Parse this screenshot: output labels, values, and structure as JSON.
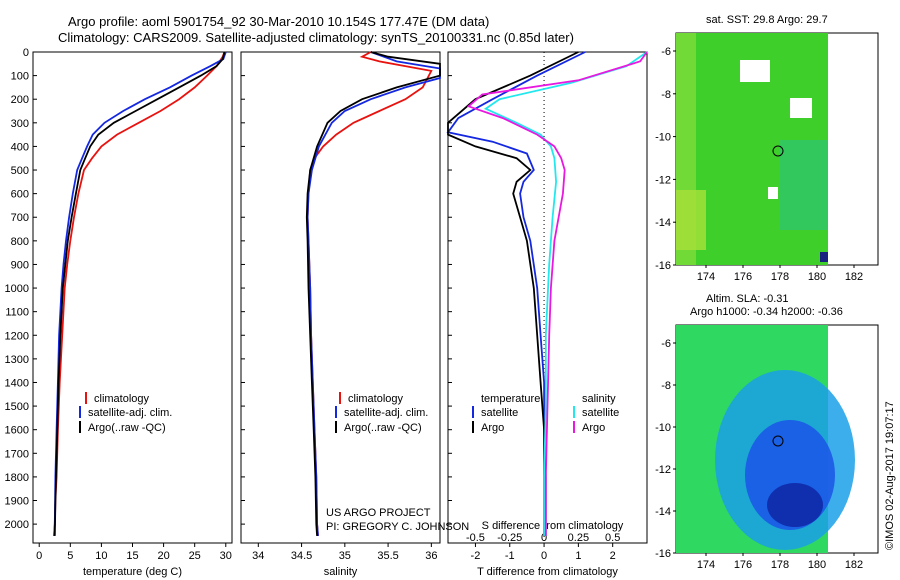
{
  "header": {
    "line1": "Argo profile: aoml 5901754_92 30-Mar-2010 10.154S 177.47E (DM data)",
    "line2": "Climatology: CARS2009. Satellite-adjusted climatology: synTS_20100331.nc (0.85d later)"
  },
  "colors": {
    "clim": "#e8120f",
    "sat": "#1428e0",
    "argo": "#000000",
    "sat_salt": "#22e8ee",
    "argo_salt": "#e818e0",
    "sst_green": "#3fcf2a",
    "sla_blue": "#1a55e8"
  },
  "chart_data": [
    {
      "type": "line",
      "id": "temperature",
      "xlabel": "temperature (deg C)",
      "xlim": [
        -1,
        31
      ],
      "xticks": [
        0,
        5,
        10,
        15,
        20,
        25,
        30
      ],
      "ylim": [
        0,
        2080
      ],
      "yticks": [
        0,
        100,
        200,
        300,
        400,
        500,
        600,
        700,
        800,
        900,
        1000,
        1100,
        1200,
        1300,
        1400,
        1500,
        1600,
        1700,
        1800,
        1900,
        2000
      ],
      "legend": [
        "climatology",
        "satellite-adj. clim.",
        "Argo(..raw -QC)"
      ],
      "series": [
        {
          "name": "climatology",
          "x": [
            29.8,
            29.5,
            28.5,
            27,
            25,
            22.5,
            19.5,
            16,
            12.5,
            10,
            8.5,
            7.2,
            6.3,
            5.6,
            5,
            4.5,
            4.1,
            3.7,
            3.3,
            3,
            2.8,
            2.6,
            2.5,
            2.4
          ],
          "y": [
            0,
            20,
            60,
            100,
            150,
            200,
            250,
            300,
            350,
            400,
            450,
            500,
            600,
            700,
            800,
            900,
            1000,
            1200,
            1400,
            1600,
            1800,
            1900,
            2000,
            2050
          ]
        },
        {
          "name": "satellite-adj. clim.",
          "x": [
            30,
            29.6,
            27.5,
            24.5,
            21,
            17,
            13.5,
            10.5,
            8.6,
            7.7,
            6.9,
            6.1,
            5.4,
            4.8,
            4.3,
            3.9,
            3.6,
            3.2,
            3,
            2.8,
            2.6,
            2.5,
            2.4
          ],
          "y": [
            0,
            30,
            60,
            100,
            150,
            200,
            250,
            300,
            350,
            400,
            450,
            500,
            600,
            700,
            800,
            900,
            1000,
            1200,
            1400,
            1600,
            1800,
            2000,
            2050
          ]
        },
        {
          "name": "Argo(..raw -QC)",
          "x": [
            29.8,
            29.5,
            28.5,
            26,
            22.5,
            19,
            15.5,
            12,
            9.5,
            8.2,
            7.4,
            6.6,
            5.9,
            5.2,
            4.6,
            4.2,
            3.8,
            3.4,
            3.1,
            2.9,
            2.7,
            2.6,
            2.5
          ],
          "y": [
            0,
            30,
            60,
            100,
            150,
            200,
            250,
            300,
            350,
            400,
            450,
            500,
            600,
            700,
            800,
            900,
            1000,
            1200,
            1400,
            1600,
            1800,
            1900,
            2050
          ]
        }
      ]
    },
    {
      "type": "line",
      "id": "salinity",
      "xlabel": "salinity",
      "xlim": [
        33.8,
        36.1
      ],
      "xticks": [
        34,
        34.5,
        35,
        35.5,
        36
      ],
      "xticklabels": [
        "34",
        "34.5",
        "35",
        "35.5",
        "36"
      ],
      "ylim": [
        0,
        2080
      ],
      "legend": [
        "climatology",
        "satellite-adj. clim.",
        "Argo(..raw -QC)"
      ],
      "series": [
        {
          "name": "climatology",
          "x": [
            35.3,
            35.2,
            35.4,
            36.0,
            35.9,
            35.7,
            35.4,
            35.1,
            34.9,
            34.75,
            34.65,
            34.6,
            34.58,
            34.57,
            34.58,
            34.6,
            34.61,
            34.63,
            34.65,
            34.67,
            34.68,
            34.69
          ],
          "y": [
            0,
            20,
            40,
            80,
            150,
            200,
            250,
            300,
            350,
            400,
            450,
            500,
            600,
            700,
            800,
            1000,
            1200,
            1400,
            1600,
            1800,
            2000,
            2050
          ]
        },
        {
          "name": "satellite-adj. clim.",
          "x": [
            35.3,
            35.6,
            36.1,
            36.1,
            35.7,
            35.3,
            35.0,
            34.85,
            34.7,
            34.62,
            34.58,
            34.57,
            34.58,
            34.6,
            34.61,
            34.63,
            34.65,
            34.67,
            34.68,
            34.69
          ],
          "y": [
            0,
            40,
            70,
            110,
            150,
            200,
            250,
            300,
            400,
            500,
            600,
            700,
            800,
            1000,
            1200,
            1400,
            1600,
            1800,
            2000,
            2050
          ]
        },
        {
          "name": "Argo(..raw -QC)",
          "x": [
            35.3,
            35.5,
            36.1,
            36.1,
            35.6,
            35.2,
            34.95,
            34.8,
            34.68,
            34.6,
            34.57,
            34.56,
            34.57,
            34.58,
            34.6,
            34.62,
            34.64,
            34.66,
            34.67,
            34.68
          ],
          "y": [
            0,
            20,
            50,
            100,
            150,
            200,
            250,
            300,
            400,
            500,
            600,
            700,
            800,
            1000,
            1200,
            1400,
            1600,
            1800,
            2000,
            2050
          ]
        }
      ]
    },
    {
      "type": "line",
      "id": "difference",
      "xlabel": "T difference from climatology",
      "xlabel_top": "S difference from climatology",
      "xlim": [
        -2.8,
        3.0
      ],
      "xticks": [
        -2,
        -1,
        0,
        1,
        2
      ],
      "top_ticks": [
        -0.5,
        -0.25,
        0,
        0.25,
        0.5
      ],
      "top_ticklabels": [
        "-0.5",
        "-0.25",
        "0",
        "0.25",
        "0.5"
      ],
      "ylim": [
        0,
        2080
      ],
      "legend_temperature": [
        "temperature",
        "satellite",
        "Argo"
      ],
      "legend_salinity": [
        "salinity",
        "satellite",
        "Argo"
      ],
      "series": [
        {
          "name": "T satellite",
          "x": [
            1.2,
            -0.2,
            -1.5,
            -2.5,
            -2.8,
            -1.5,
            -0.5,
            -0.3,
            -0.6,
            -0.7,
            -0.6,
            -0.4,
            -0.2,
            -0.1,
            0,
            0,
            0.05,
            0.05,
            0.05
          ],
          "y": [
            0,
            100,
            200,
            280,
            340,
            380,
            430,
            500,
            550,
            600,
            700,
            800,
            1000,
            1200,
            1400,
            1600,
            1800,
            2000,
            2050
          ]
        },
        {
          "name": "T Argo",
          "x": [
            1.0,
            -0.4,
            -2.0,
            -2.9,
            -2.9,
            -2.0,
            -0.8,
            -0.4,
            -0.8,
            -0.9,
            -0.7,
            -0.5,
            -0.3,
            -0.2,
            -0.1,
            0,
            0,
            0,
            0
          ],
          "y": [
            0,
            100,
            200,
            300,
            350,
            400,
            450,
            500,
            550,
            600,
            700,
            800,
            1000,
            1200,
            1400,
            1600,
            1800,
            2000,
            2050
          ]
        },
        {
          "name": "S satellite",
          "x": [
            3.0,
            2.4,
            0.8,
            -1.3,
            -1.7,
            -0.8,
            -0.1,
            0.2,
            0.3,
            0.35,
            0.25,
            0.15,
            0.05,
            0.05,
            0,
            0,
            0
          ],
          "y": [
            0,
            60,
            130,
            200,
            240,
            300,
            350,
            400,
            450,
            550,
            700,
            900,
            1200,
            1500,
            1800,
            2000,
            2050
          ]
        },
        {
          "name": "S Argo",
          "x": [
            3.0,
            2.8,
            1.0,
            -1.8,
            -2.2,
            -1.2,
            -0.2,
            0.3,
            0.5,
            0.6,
            0.55,
            0.3,
            0.2,
            0.15,
            0.1,
            0.05,
            0.05
          ],
          "y": [
            0,
            40,
            120,
            180,
            230,
            280,
            350,
            400,
            450,
            500,
            600,
            800,
            1000,
            1200,
            1500,
            1800,
            2050
          ]
        }
      ]
    }
  ],
  "credits": {
    "line1": "US ARGO PROJECT",
    "line2": "PI: GREGORY C. JOHNSON"
  },
  "sst_map": {
    "title": "sat. SST: 29.8 Argo: 29.7",
    "xticks": [
      "174",
      "176",
      "178",
      "180",
      "182"
    ],
    "yticks": [
      "-6",
      "-8",
      "-10",
      "-12",
      "-14",
      "-16"
    ]
  },
  "sla_map": {
    "title1": "Altim. SLA: -0.31",
    "title2": "Argo h1000: -0.34 h2000: -0.36",
    "xticks": [
      "174",
      "176",
      "178",
      "180",
      "182"
    ],
    "yticks": [
      "-6",
      "-8",
      "-10",
      "-12",
      "-14",
      "-16"
    ]
  },
  "footer": {
    "stamp": "©IMOS 02-Aug-2017 19:07:17"
  }
}
